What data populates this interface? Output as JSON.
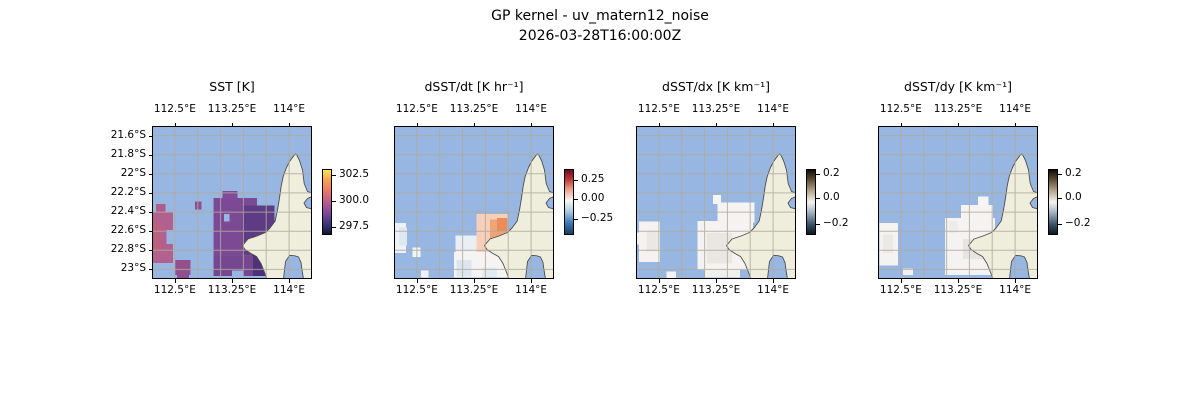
{
  "figure": {
    "title_line1": "GP kernel - uv_matern12_noise",
    "title_line2": "2026-03-28T16:00:00Z"
  },
  "chart_data": {
    "type": "heatmap",
    "description": "Four cartographic heatmap panels (North West Cape / Exmouth Gulf region, Western Australia) showing SST and its derivatives on a lat/lon grid",
    "geo": {
      "lon_ticks": [
        {
          "label": "112.5°E",
          "f": 0.143
        },
        {
          "label": "113.25°E",
          "f": 0.5
        },
        {
          "label": "114°E",
          "f": 0.857
        }
      ],
      "lat_ticks": [
        {
          "label": "21.6°S",
          "f": 0.0625
        },
        {
          "label": "21.8°S",
          "f": 0.1875
        },
        {
          "label": "22°S",
          "f": 0.3125
        },
        {
          "label": "22.2°S",
          "f": 0.4375
        },
        {
          "label": "22.4°S",
          "f": 0.5625
        },
        {
          "label": "22.6°S",
          "f": 0.6875
        },
        {
          "label": "22.8°S",
          "f": 0.8125
        },
        {
          "label": "23°S",
          "f": 0.9375
        }
      ],
      "vgrid_f": [
        0.143,
        0.286,
        0.429,
        0.571,
        0.714,
        0.857,
        0.998
      ],
      "hgrid_f": [
        0.0625,
        0.1875,
        0.3125,
        0.4375,
        0.5625,
        0.6875,
        0.8125,
        0.9375
      ],
      "ocean_color": "#97b7e2",
      "land_color": "#efeedd",
      "coast_color": "#4d4d4d",
      "grid_color": "#b0aa9e",
      "frame_color": "#000000"
    },
    "panels": [
      {
        "title": "SST [K]",
        "colorbar": {
          "ticks": [
            {
              "label": "302.5",
              "f": 0.09
            },
            {
              "label": "300.0",
              "f": 0.5
            },
            {
              "label": "297.5",
              "f": 0.91
            }
          ],
          "gradient": [
            [
              0,
              "#fce64f"
            ],
            [
              14,
              "#f8a84e"
            ],
            [
              30,
              "#ee7d62"
            ],
            [
              45,
              "#cb6386"
            ],
            [
              60,
              "#97519b"
            ],
            [
              75,
              "#5e4190"
            ],
            [
              90,
              "#2d2e62"
            ],
            [
              100,
              "#121331"
            ]
          ]
        },
        "patches": [
          [
            0.0,
            0.565,
            0.13,
            0.33,
            "#b2608d"
          ],
          [
            0.0,
            0.63,
            0.055,
            0.18,
            "#bc6080"
          ],
          [
            0.025,
            0.51,
            0.06,
            0.06,
            "#ae5c8c"
          ],
          [
            0.09,
            0.68,
            0.045,
            0.09,
            "#97b7e2"
          ],
          [
            0.145,
            0.875,
            0.095,
            0.1,
            "#94508d"
          ],
          [
            0.27,
            0.495,
            0.04,
            0.05,
            "#8d4f91"
          ],
          [
            0.385,
            0.47,
            0.27,
            0.5,
            "#7c4a94"
          ],
          [
            0.44,
            0.425,
            0.095,
            0.055,
            "#83499a"
          ],
          [
            0.565,
            0.52,
            0.2,
            0.32,
            "#5e3c85"
          ],
          [
            0.625,
            0.72,
            0.155,
            0.26,
            "#4f3179"
          ],
          [
            0.385,
            0.85,
            0.245,
            0.13,
            "#744790"
          ],
          [
            0.155,
            0.955,
            0.075,
            0.045,
            "#8d4f8e"
          ],
          [
            0.5,
            0.945,
            0.07,
            0.055,
            "#97b7e2"
          ],
          [
            0.45,
            0.575,
            0.035,
            0.05,
            "#97b7e2"
          ]
        ]
      },
      {
        "title": "dSST/dt [K hr⁻¹]",
        "colorbar": {
          "ticks": [
            {
              "label": "0.25",
              "f": 0.17
            },
            {
              "label": "0.00",
              "f": 0.47
            },
            {
              "label": "−0.25",
              "f": 0.78
            }
          ],
          "gradient": [
            [
              0,
              "#6b0b20"
            ],
            [
              15,
              "#bd3a38"
            ],
            [
              30,
              "#e9a188"
            ],
            [
              48,
              "#f7f6f5"
            ],
            [
              65,
              "#a9cade"
            ],
            [
              82,
              "#3f7cb6"
            ],
            [
              100,
              "#173c66"
            ]
          ]
        },
        "patches": [
          [
            0.0,
            0.635,
            0.075,
            0.195,
            "#eef2f7"
          ],
          [
            0.03,
            0.665,
            0.05,
            0.115,
            "#dde8f1"
          ],
          [
            0.115,
            0.795,
            0.05,
            0.06,
            "#f2f4f6"
          ],
          [
            0.515,
            0.575,
            0.195,
            0.26,
            "#f5cfb8"
          ],
          [
            0.6,
            0.61,
            0.11,
            0.17,
            "#efa478"
          ],
          [
            0.645,
            0.6,
            0.06,
            0.09,
            "#ea8d58"
          ],
          [
            0.385,
            0.715,
            0.13,
            0.125,
            "#e9eff5"
          ],
          [
            0.375,
            0.825,
            0.375,
            0.165,
            "#f6f4f2"
          ],
          [
            0.39,
            0.875,
            0.095,
            0.11,
            "#dbe6ef"
          ],
          [
            0.55,
            0.925,
            0.095,
            0.065,
            "#e3ebf2"
          ],
          [
            0.17,
            0.945,
            0.045,
            0.045,
            "#f0f3f6"
          ]
        ]
      },
      {
        "title": "dSST/dx [K km⁻¹]",
        "colorbar": {
          "ticks": [
            {
              "label": "0.2",
              "f": 0.08
            },
            {
              "label": "0.0",
              "f": 0.46
            },
            {
              "label": "−0.2",
              "f": 0.86
            }
          ],
          "gradient": [
            [
              0,
              "#0f0c07"
            ],
            [
              14,
              "#55482e"
            ],
            [
              32,
              "#b0a286"
            ],
            [
              50,
              "#f4f3f1"
            ],
            [
              66,
              "#a5b4c1"
            ],
            [
              85,
              "#3a5267"
            ],
            [
              100,
              "#0d1723"
            ]
          ]
        },
        "patches": [
          [
            0.0,
            0.695,
            0.03,
            0.08,
            "#f2f1ef"
          ],
          [
            0.02,
            0.625,
            0.13,
            0.265,
            "#f4f3f1"
          ],
          [
            0.065,
            0.69,
            0.075,
            0.13,
            "#eae8e5"
          ],
          [
            0.48,
            0.45,
            0.05,
            0.06,
            "#f6f5f3"
          ],
          [
            0.51,
            0.5,
            0.23,
            0.13,
            "#f5f4f2"
          ],
          [
            0.385,
            0.62,
            0.345,
            0.32,
            "#f4f3f1"
          ],
          [
            0.44,
            0.7,
            0.16,
            0.2,
            "#eae7e3"
          ],
          [
            0.43,
            0.935,
            0.22,
            0.055,
            "#f1efec"
          ],
          [
            0.19,
            0.95,
            0.06,
            0.045,
            "#f3f2f0"
          ]
        ]
      },
      {
        "title": "dSST/dy [K km⁻¹]",
        "colorbar": {
          "ticks": [
            {
              "label": "0.2",
              "f": 0.08
            },
            {
              "label": "0.0",
              "f": 0.46
            },
            {
              "label": "−0.2",
              "f": 0.86
            }
          ],
          "gradient": [
            [
              0,
              "#0f0c07"
            ],
            [
              14,
              "#55482e"
            ],
            [
              32,
              "#b0a286"
            ],
            [
              50,
              "#f4f3f1"
            ],
            [
              66,
              "#a5b4c1"
            ],
            [
              85,
              "#3a5267"
            ],
            [
              100,
              "#0d1723"
            ]
          ]
        },
        "patches": [
          [
            0.01,
            0.635,
            0.115,
            0.275,
            "#f4f3f1"
          ],
          [
            0.03,
            0.71,
            0.065,
            0.12,
            "#ebe9e6"
          ],
          [
            0.625,
            0.46,
            0.065,
            0.06,
            "#f6f5f3"
          ],
          [
            0.52,
            0.515,
            0.2,
            0.09,
            "#f5f4f2"
          ],
          [
            0.42,
            0.6,
            0.31,
            0.375,
            "#f4f3f1"
          ],
          [
            0.44,
            0.62,
            0.06,
            0.08,
            "#eeece9"
          ],
          [
            0.53,
            0.74,
            0.13,
            0.13,
            "#e7e5e2"
          ],
          [
            0.155,
            0.93,
            0.065,
            0.045,
            "#f2f1ef"
          ]
        ]
      }
    ]
  }
}
